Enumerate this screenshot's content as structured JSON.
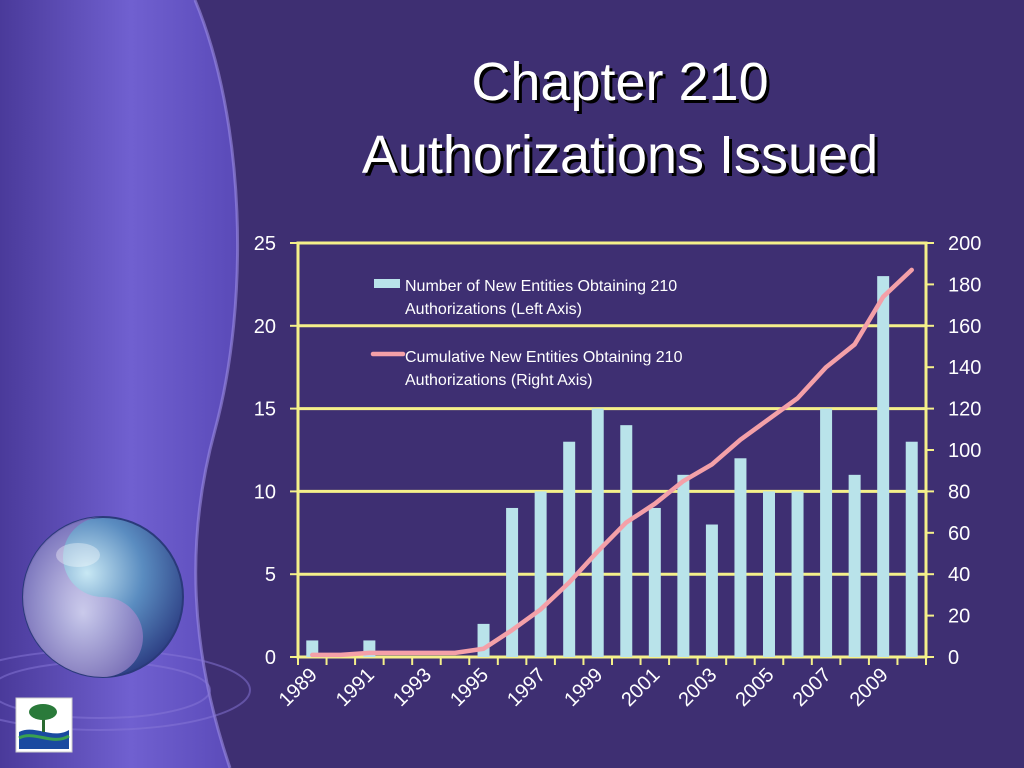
{
  "slide": {
    "title_line1": "Chapter 210",
    "title_line2": "Authorizations Issued",
    "logo_icon": "tree-logo-icon",
    "decor_icon": "yin-yang-sphere-icon"
  },
  "colors": {
    "background": "#3e2f72",
    "panel": "#6a5ac8",
    "bars": "#b9e3ea",
    "line": "#f4a0a8",
    "grid": "#f5f08a",
    "text": "#ffffff"
  },
  "chart_data": {
    "type": "bar",
    "title": "",
    "categories": [
      "1989",
      "1990",
      "1991",
      "1992",
      "1993",
      "1994",
      "1995",
      "1996",
      "1997",
      "1998",
      "1999",
      "2000",
      "2001",
      "2002",
      "2003",
      "2004",
      "2005",
      "2006",
      "2007",
      "2008",
      "2009",
      "2010"
    ],
    "x_tick_labels": [
      "1989",
      "1991",
      "1993",
      "1995",
      "1997",
      "1999",
      "2001",
      "2003",
      "2005",
      "2007",
      "2009"
    ],
    "series": [
      {
        "name": "Number of New Entities Obtaining 210 Authorizations (Left Axis)",
        "type": "bar",
        "axis": "left",
        "values": [
          1,
          0,
          1,
          0,
          0,
          0,
          2,
          9,
          10,
          13,
          15,
          14,
          9,
          11,
          8,
          12,
          10,
          10,
          15,
          11,
          23,
          13
        ]
      },
      {
        "name": "Cumulative New Entities Obtaining 210 Authorizations (Right Axis)",
        "type": "line",
        "axis": "right",
        "values": [
          1,
          1,
          2,
          2,
          2,
          2,
          4,
          13,
          23,
          36,
          51,
          65,
          74,
          85,
          93,
          105,
          115,
          125,
          140,
          151,
          174,
          187
        ]
      }
    ],
    "y_left": {
      "lim": [
        0,
        25
      ],
      "ticks": [
        0,
        5,
        10,
        15,
        20,
        25
      ]
    },
    "y_right": {
      "lim": [
        0,
        200
      ],
      "ticks": [
        0,
        20,
        40,
        60,
        80,
        100,
        120,
        140,
        160,
        180,
        200
      ]
    },
    "grid": true,
    "legend_position": "top-left inside plot"
  }
}
